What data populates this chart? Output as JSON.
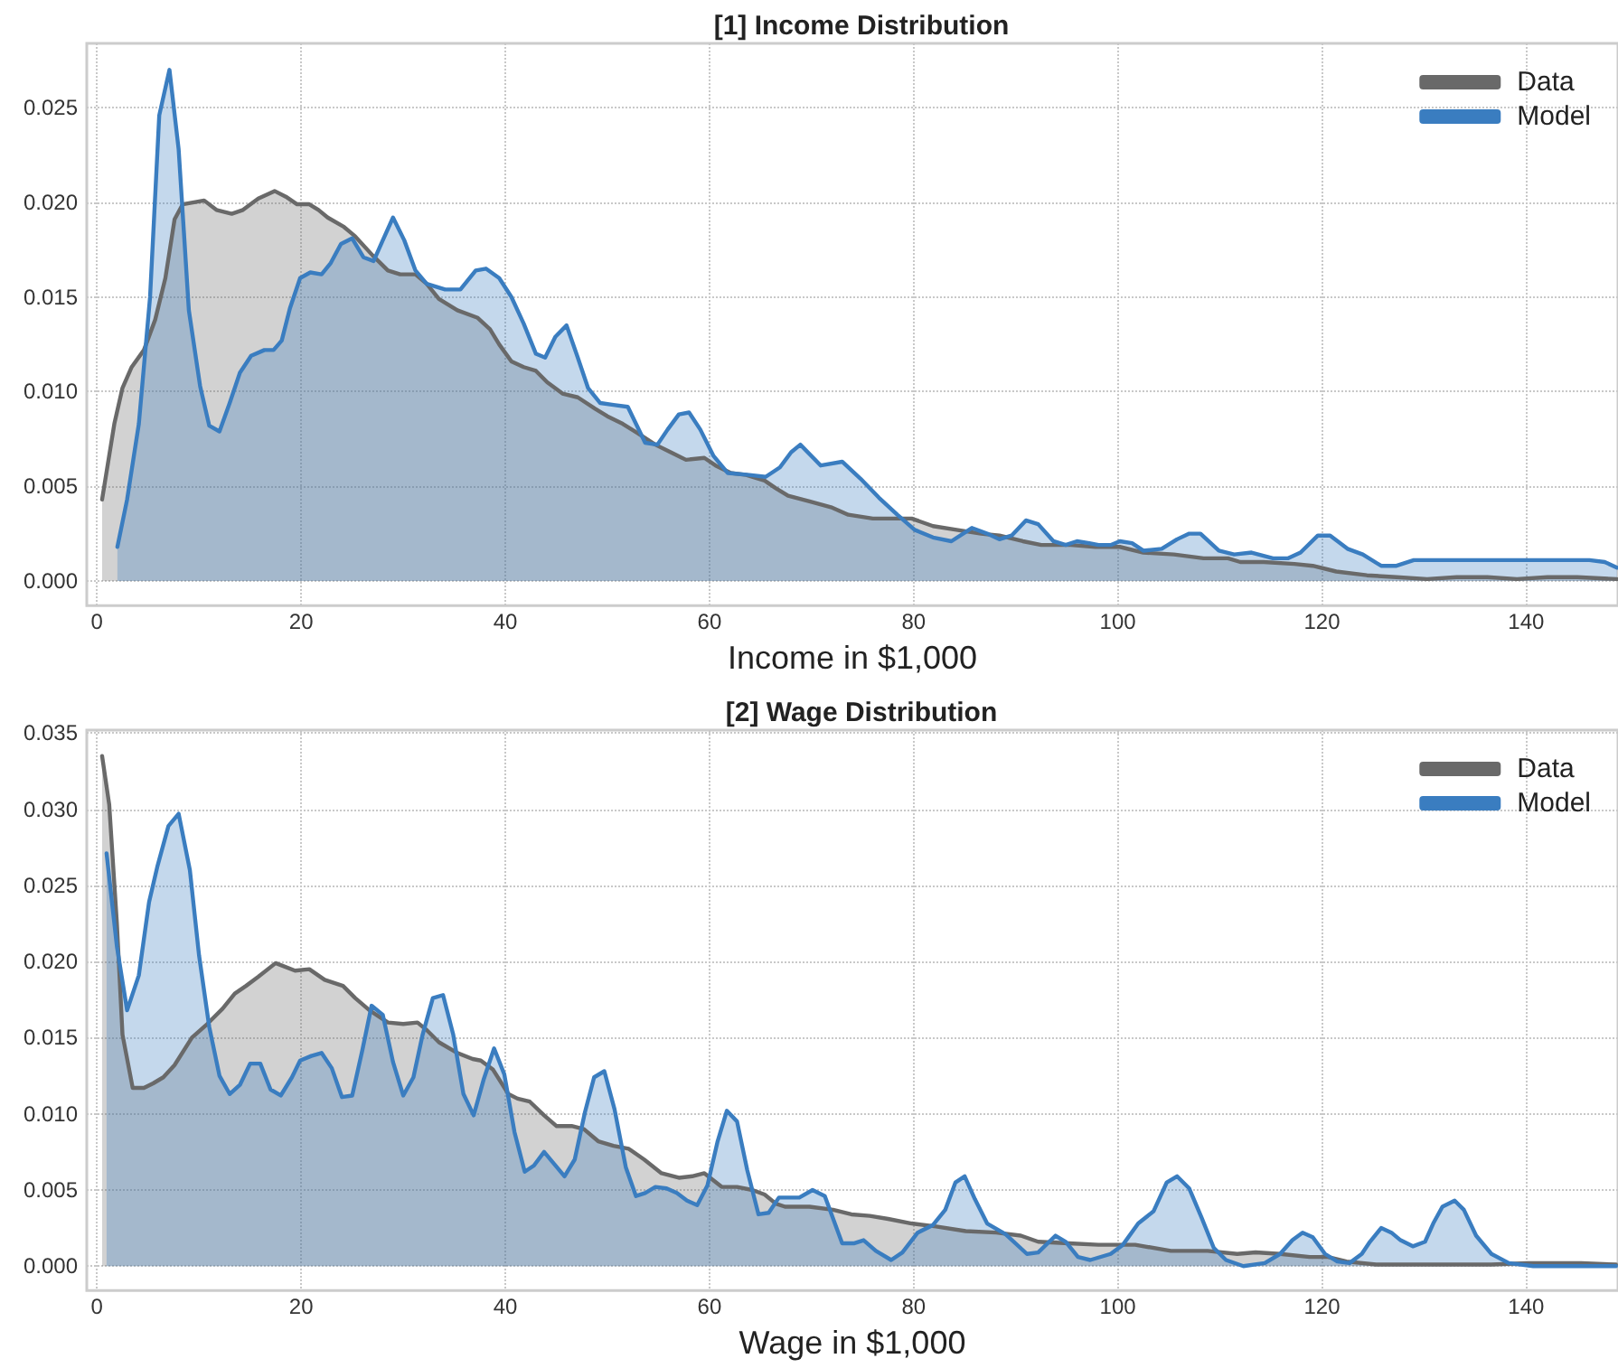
{
  "chart_data": [
    {
      "type": "area",
      "title": "[1] Income Distribution",
      "xlabel": "Income in $1,000",
      "xlim": [
        -1,
        149
      ],
      "xticks": [
        0,
        20,
        40,
        60,
        80,
        100,
        120,
        140
      ],
      "ylim": [
        -0.0013,
        0.0284
      ],
      "yticks": [
        {
          "value": 0,
          "label": "0.000"
        },
        0.005,
        {
          "value": 0.01,
          "label": "0.010"
        },
        0.015,
        {
          "value": 0.02,
          "label": "0.020"
        },
        0.025
      ],
      "grid": true,
      "legend": "top right",
      "marker": "none",
      "series": [
        {
          "name": "Data",
          "color": "#696969",
          "x": [
            0.5,
            1.7,
            2.5,
            3.4,
            4.6,
            5.7,
            6.7,
            7.6,
            8.4,
            10.5,
            11.7,
            13.2,
            14.3,
            15.8,
            17.4,
            18.5,
            19.6,
            20.8,
            21.7,
            22.6,
            24.2,
            25.3,
            27,
            28.5,
            29.7,
            31.2,
            32.3,
            33.5,
            35.3,
            37.3,
            38.5,
            39.4,
            40.6,
            41.8,
            43,
            44.1,
            45.6,
            47.1,
            48.8,
            50,
            51.5,
            53,
            54.7,
            56.2,
            57.7,
            59.5,
            60.6,
            62.1,
            63.6,
            65.4,
            66.5,
            67.7,
            69.8,
            71.9,
            73.6,
            76,
            78.4,
            79.8,
            81.9,
            84.2,
            86.6,
            88.4,
            90.7,
            92.5,
            95.4,
            97.8,
            100.2,
            102.5,
            105.5,
            108.4,
            110.8,
            112,
            114.3,
            117.3,
            119.1,
            121.4,
            124.4,
            127.3,
            130.3,
            133.2,
            136.2,
            139.1,
            142.1,
            145,
            148.9
          ],
          "values": [
            0.0043,
            0.0083,
            0.0102,
            0.0113,
            0.0122,
            0.0138,
            0.016,
            0.0191,
            0.0199,
            0.0201,
            0.0196,
            0.0194,
            0.0196,
            0.0202,
            0.0206,
            0.0203,
            0.0199,
            0.0199,
            0.0196,
            0.0192,
            0.0187,
            0.0182,
            0.0172,
            0.0164,
            0.0162,
            0.0162,
            0.0157,
            0.0149,
            0.0143,
            0.0139,
            0.0133,
            0.0125,
            0.0116,
            0.0113,
            0.0111,
            0.0105,
            0.0099,
            0.0097,
            0.0091,
            0.0087,
            0.0083,
            0.0078,
            0.0072,
            0.0068,
            0.0064,
            0.0065,
            0.0061,
            0.0057,
            0.0056,
            0.0053,
            0.0049,
            0.0045,
            0.0042,
            0.0039,
            0.0035,
            0.0033,
            0.0033,
            0.0033,
            0.0029,
            0.0027,
            0.0025,
            0.0024,
            0.0021,
            0.0019,
            0.0019,
            0.0018,
            0.0018,
            0.0015,
            0.0014,
            0.0012,
            0.0012,
            0.001,
            0.001,
            0.0009,
            0.0008,
            0.0005,
            0.0003,
            0.0002,
            0.0001,
            0.0002,
            0.0002,
            0.0001,
            0.0002,
            0.0002,
            0.0001
          ]
        },
        {
          "name": "Model",
          "color": "#3a7dc0",
          "x": [
            2,
            2.95,
            4.1,
            5.2,
            6.1,
            7.1,
            8,
            9,
            10.1,
            11,
            12,
            13,
            14,
            15.1,
            16.4,
            17.3,
            18.1,
            18.9,
            19.9,
            20.9,
            22,
            22.9,
            23.9,
            25,
            26.1,
            27.1,
            28,
            29,
            30.1,
            31.2,
            32.3,
            34.1,
            35.6,
            37.1,
            38.1,
            39.4,
            40.6,
            41.8,
            43,
            43.9,
            44.9,
            46,
            47.1,
            48.1,
            49.3,
            50.6,
            52,
            53.7,
            54.9,
            55.9,
            57,
            58,
            59.1,
            60.4,
            61.8,
            63.9,
            65.5,
            66.9,
            68,
            68.9,
            70.9,
            73,
            74.8,
            76.6,
            78.4,
            80.1,
            81.9,
            83.7,
            85.7,
            87.2,
            88.4,
            89.6,
            91,
            92.2,
            93.7,
            94.9,
            96,
            97.2,
            98.1,
            99.3,
            100.2,
            101.4,
            102.5,
            104.3,
            105.8,
            107,
            108.1,
            109.9,
            111.4,
            113.1,
            115.2,
            116.7,
            117.9,
            119.6,
            120.8,
            122.5,
            124,
            125.8,
            127.3,
            129,
            130.8,
            136.2,
            142.1,
            146.2,
            147.7,
            148.9
          ],
          "values": [
            0.0018,
            0.0043,
            0.0083,
            0.015,
            0.0246,
            0.027,
            0.0228,
            0.0143,
            0.0103,
            0.0082,
            0.0079,
            0.0094,
            0.011,
            0.0119,
            0.0122,
            0.0122,
            0.0127,
            0.0144,
            0.016,
            0.0163,
            0.0162,
            0.0168,
            0.0178,
            0.0181,
            0.0171,
            0.0169,
            0.018,
            0.0192,
            0.018,
            0.0164,
            0.0157,
            0.0154,
            0.0154,
            0.0164,
            0.0165,
            0.016,
            0.015,
            0.0136,
            0.012,
            0.0118,
            0.0129,
            0.0135,
            0.0118,
            0.0102,
            0.0094,
            0.0093,
            0.0092,
            0.0073,
            0.0072,
            0.008,
            0.0088,
            0.0089,
            0.008,
            0.0066,
            0.0057,
            0.0056,
            0.0055,
            0.006,
            0.0068,
            0.0072,
            0.0061,
            0.0063,
            0.0054,
            0.0044,
            0.0035,
            0.0027,
            0.0023,
            0.0021,
            0.0028,
            0.0025,
            0.0022,
            0.0024,
            0.0032,
            0.003,
            0.0021,
            0.0019,
            0.0021,
            0.002,
            0.0019,
            0.0019,
            0.0021,
            0.002,
            0.0016,
            0.0017,
            0.0022,
            0.0025,
            0.0025,
            0.0016,
            0.0014,
            0.0015,
            0.0012,
            0.0012,
            0.0015,
            0.0024,
            0.0024,
            0.0017,
            0.0014,
            0.0008,
            0.0008,
            0.0011,
            0.0011,
            0.0011,
            0.0011,
            0.0011,
            0.001,
            0.0007
          ]
        }
      ]
    },
    {
      "type": "area",
      "title": "[2] Wage Distribution",
      "xlabel": "Wage in $1,000",
      "xlim": [
        -1,
        149
      ],
      "xticks": [
        0,
        20,
        40,
        60,
        80,
        100,
        120,
        140
      ],
      "ylim": [
        -0.0016,
        0.0352
      ],
      "yticks": [
        {
          "value": 0,
          "label": "0.000"
        },
        0.005,
        {
          "value": 0.01,
          "label": "0.010"
        },
        0.015,
        {
          "value": 0.02,
          "label": "0.020"
        },
        0.025,
        {
          "value": 0.03,
          "label": "0.030"
        },
        0.035
      ],
      "grid": true,
      "legend": "top right",
      "marker": "none",
      "series": [
        {
          "name": "Data",
          "color": "#696969",
          "x": [
            0.5,
            1.2,
            1.95,
            2.5,
            3.5,
            4.6,
            5.5,
            6.5,
            7.6,
            9.3,
            10.8,
            12.3,
            13.5,
            14.6,
            15.8,
            17.5,
            19.4,
            20.8,
            22.3,
            24.1,
            25.3,
            26.7,
            28.5,
            30,
            31.4,
            32.3,
            33.5,
            35.3,
            36.8,
            37.6,
            38.8,
            40.3,
            41.2,
            42.4,
            43.8,
            45,
            46.5,
            47.7,
            49.1,
            50.6,
            52.1,
            53.6,
            55.3,
            57,
            58.3,
            59.5,
            61.2,
            62.7,
            64.2,
            65.4,
            66.5,
            67.4,
            69.8,
            72.1,
            73.9,
            75.7,
            77.5,
            79.8,
            82.2,
            85.1,
            88.1,
            90.5,
            92.2,
            95.2,
            98.1,
            101.7,
            105.2,
            108.8,
            111.7,
            113.5,
            115.9,
            118.8,
            120.6,
            122.4,
            125.3,
            130.6,
            136.6,
            140.1,
            145.4,
            148.8
          ],
          "values": [
            0.0335,
            0.0303,
            0.0225,
            0.0152,
            0.0117,
            0.0117,
            0.012,
            0.0124,
            0.0132,
            0.015,
            0.0159,
            0.0169,
            0.0179,
            0.0184,
            0.019,
            0.0199,
            0.0194,
            0.0195,
            0.0188,
            0.0184,
            0.0176,
            0.0168,
            0.016,
            0.0159,
            0.016,
            0.0155,
            0.0147,
            0.014,
            0.0136,
            0.0135,
            0.0129,
            0.0113,
            0.011,
            0.0108,
            0.0099,
            0.0092,
            0.0092,
            0.009,
            0.0082,
            0.0079,
            0.0077,
            0.007,
            0.0061,
            0.0058,
            0.0059,
            0.0061,
            0.0052,
            0.0052,
            0.005,
            0.0047,
            0.0041,
            0.0039,
            0.0039,
            0.0037,
            0.0034,
            0.0033,
            0.0031,
            0.0028,
            0.0026,
            0.0023,
            0.0022,
            0.002,
            0.0016,
            0.0015,
            0.0014,
            0.0014,
            0.001,
            0.001,
            0.0008,
            0.0009,
            0.0008,
            0.0006,
            0.0006,
            0.0003,
            0.0001,
            0.0001,
            0.0001,
            0.0002,
            0.0002,
            0.0001
          ]
        },
        {
          "name": "Model",
          "color": "#3a7dc0",
          "x": [
            0.94,
            1.95,
            2.95,
            4.1,
            5.1,
            5.9,
            7,
            8,
            9.1,
            10,
            11,
            12,
            13,
            14,
            15,
            16,
            17,
            18,
            19.1,
            19.9,
            21,
            22,
            23,
            24,
            25,
            26,
            26.9,
            28,
            29,
            30,
            31,
            31.9,
            32.9,
            33.9,
            34.9,
            35.9,
            36.9,
            37.9,
            38.9,
            39.9,
            40.9,
            41.9,
            42.8,
            43.8,
            44.8,
            45.8,
            46.8,
            47.8,
            48.7,
            49.7,
            50.7,
            51.8,
            52.8,
            53.7,
            54.7,
            55.8,
            56.8,
            57.8,
            58.8,
            59.8,
            60.8,
            61.7,
            62.7,
            63.7,
            64.8,
            65.8,
            66.8,
            68.8,
            70.1,
            71.3,
            73,
            74.2,
            75.1,
            76.3,
            77.8,
            78.9,
            80.4,
            81.9,
            83.1,
            84.1,
            85,
            86,
            87.2,
            89,
            91.1,
            92.2,
            93.9,
            94.9,
            96.1,
            97.3,
            99.3,
            100.5,
            102,
            103.5,
            104.8,
            105.8,
            107,
            108.2,
            109.4,
            110.6,
            112.3,
            114.4,
            115.9,
            117.1,
            118.1,
            119.1,
            120.3,
            121.5,
            122.7,
            123.9,
            124.7,
            125.8,
            126.8,
            127.7,
            128.9,
            130.1,
            130.9,
            131.8,
            133,
            133.9,
            135.1,
            136.6,
            138.3,
            140.7,
            145.4,
            148.8
          ],
          "values": [
            0.0271,
            0.021,
            0.0168,
            0.0191,
            0.0239,
            0.0262,
            0.0289,
            0.0297,
            0.026,
            0.0204,
            0.0157,
            0.0125,
            0.0113,
            0.0119,
            0.0133,
            0.0133,
            0.0116,
            0.0112,
            0.0124,
            0.0135,
            0.0138,
            0.014,
            0.013,
            0.0111,
            0.0112,
            0.0142,
            0.0171,
            0.0165,
            0.0134,
            0.0112,
            0.0124,
            0.0152,
            0.0176,
            0.0178,
            0.0152,
            0.0113,
            0.0099,
            0.0123,
            0.0143,
            0.0126,
            0.0088,
            0.0062,
            0.0066,
            0.0075,
            0.0067,
            0.0059,
            0.007,
            0.0101,
            0.0124,
            0.0128,
            0.0103,
            0.0065,
            0.0046,
            0.0048,
            0.0052,
            0.0051,
            0.0048,
            0.0043,
            0.004,
            0.0053,
            0.0082,
            0.0102,
            0.0095,
            0.0063,
            0.0034,
            0.0035,
            0.0045,
            0.0045,
            0.005,
            0.0046,
            0.0015,
            0.0015,
            0.0017,
            0.001,
            0.0004,
            0.0009,
            0.0022,
            0.0027,
            0.0037,
            0.0055,
            0.0059,
            0.0044,
            0.0028,
            0.0021,
            0.0008,
            0.0009,
            0.002,
            0.0016,
            0.0006,
            0.0004,
            0.0008,
            0.0014,
            0.0028,
            0.0036,
            0.0055,
            0.0059,
            0.0051,
            0.0032,
            0.0012,
            0.0004,
            0,
            0.0002,
            0.0008,
            0.0017,
            0.0022,
            0.0019,
            0.0008,
            0.0003,
            0.0002,
            0.0008,
            0.0016,
            0.0025,
            0.0022,
            0.0017,
            0.0013,
            0.0016,
            0.0028,
            0.0039,
            0.0043,
            0.0037,
            0.002,
            0.0008,
            0.0002,
            0,
            0,
            0
          ]
        }
      ]
    }
  ]
}
